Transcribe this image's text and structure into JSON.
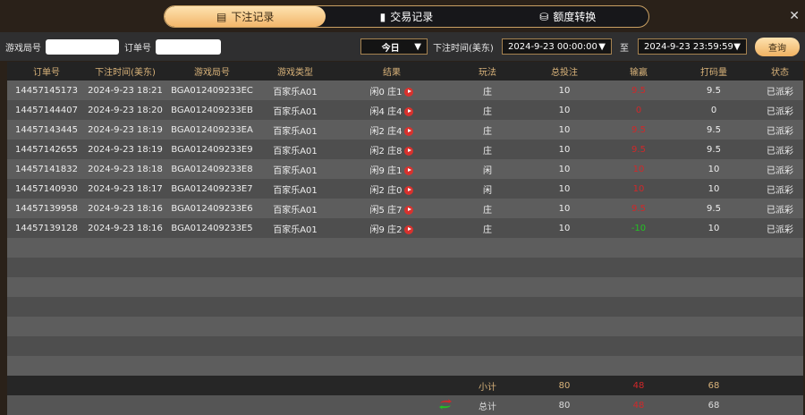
{
  "tabs": [
    {
      "label": "下注记录",
      "icon": "bet-record-icon",
      "active": true
    },
    {
      "label": "交易记录",
      "icon": "transaction-icon"
    },
    {
      "label": "额度转换",
      "icon": "credit-transfer-icon"
    }
  ],
  "filter": {
    "game_no_label": "游戏局号",
    "game_no_value": "",
    "order_no_label": "订单号",
    "order_no_value": "",
    "range": "今日",
    "time_label": "下注时间(美东)",
    "start": "2024-9-23 00:00:00",
    "to": "至",
    "end": "2024-9-23 23:59:59",
    "query": "查询"
  },
  "columns": [
    "订单号",
    "下注时间(美东)",
    "游戏局号",
    "游戏类型",
    "结果",
    "玩法",
    "总投注",
    "输赢",
    "打码量",
    "状态"
  ],
  "rows": [
    [
      "14457145173",
      "2024-9-23 18:21",
      "BGA012409233EC",
      "百家乐A01",
      "闲0 庄1",
      "庄",
      "10",
      "9.5",
      "9.5",
      "已派彩"
    ],
    [
      "14457144407",
      "2024-9-23 18:20",
      "BGA012409233EB",
      "百家乐A01",
      "闲4 庄4",
      "庄",
      "10",
      "0",
      "0",
      "已派彩"
    ],
    [
      "14457143445",
      "2024-9-23 18:19",
      "BGA012409233EA",
      "百家乐A01",
      "闲2 庄4",
      "庄",
      "10",
      "9.5",
      "9.5",
      "已派彩"
    ],
    [
      "14457142655",
      "2024-9-23 18:19",
      "BGA012409233E9",
      "百家乐A01",
      "闲2 庄8",
      "庄",
      "10",
      "9.5",
      "9.5",
      "已派彩"
    ],
    [
      "14457141832",
      "2024-9-23 18:18",
      "BGA012409233E8",
      "百家乐A01",
      "闲9 庄1",
      "闲",
      "10",
      "10",
      "10",
      "已派彩"
    ],
    [
      "14457140930",
      "2024-9-23 18:17",
      "BGA012409233E7",
      "百家乐A01",
      "闲2 庄0",
      "闲",
      "10",
      "10",
      "10",
      "已派彩"
    ],
    [
      "14457139958",
      "2024-9-23 18:16",
      "BGA012409233E6",
      "百家乐A01",
      "闲5 庄7",
      "庄",
      "10",
      "9.5",
      "9.5",
      "已派彩"
    ],
    [
      "14457139128",
      "2024-9-23 18:16",
      "BGA012409233E5",
      "百家乐A01",
      "闲9 庄2",
      "庄",
      "10",
      "-10",
      "10",
      "已派彩"
    ]
  ],
  "subtotal": {
    "label": "小计",
    "bet": "80",
    "win": "48",
    "turnover": "68"
  },
  "total": {
    "label": "总计",
    "bet": "80",
    "win": "48",
    "turnover": "68"
  },
  "colors": {
    "win": "#d0282a",
    "loss": "#22c322",
    "accent": "#f2b66a"
  }
}
